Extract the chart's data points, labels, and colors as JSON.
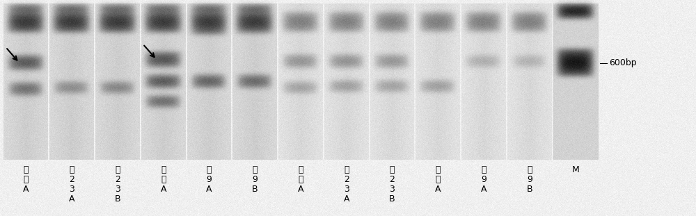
{
  "fig_width": 10.0,
  "fig_height": 3.11,
  "dpi": 100,
  "gel_bg": 220,
  "outer_bg": 240,
  "lane_labels": [
    "非金A",
    "金23A",
    "金23B",
    "非中A",
    "中9A",
    "中9B",
    "非金A",
    "金23A",
    "金23B",
    "非中A",
    "中9A",
    "中9B",
    "M"
  ],
  "marker_label": "600bp",
  "label_fontsize": 9,
  "marker_fontsize": 9,
  "arrow_color": "black",
  "label_color": "black"
}
